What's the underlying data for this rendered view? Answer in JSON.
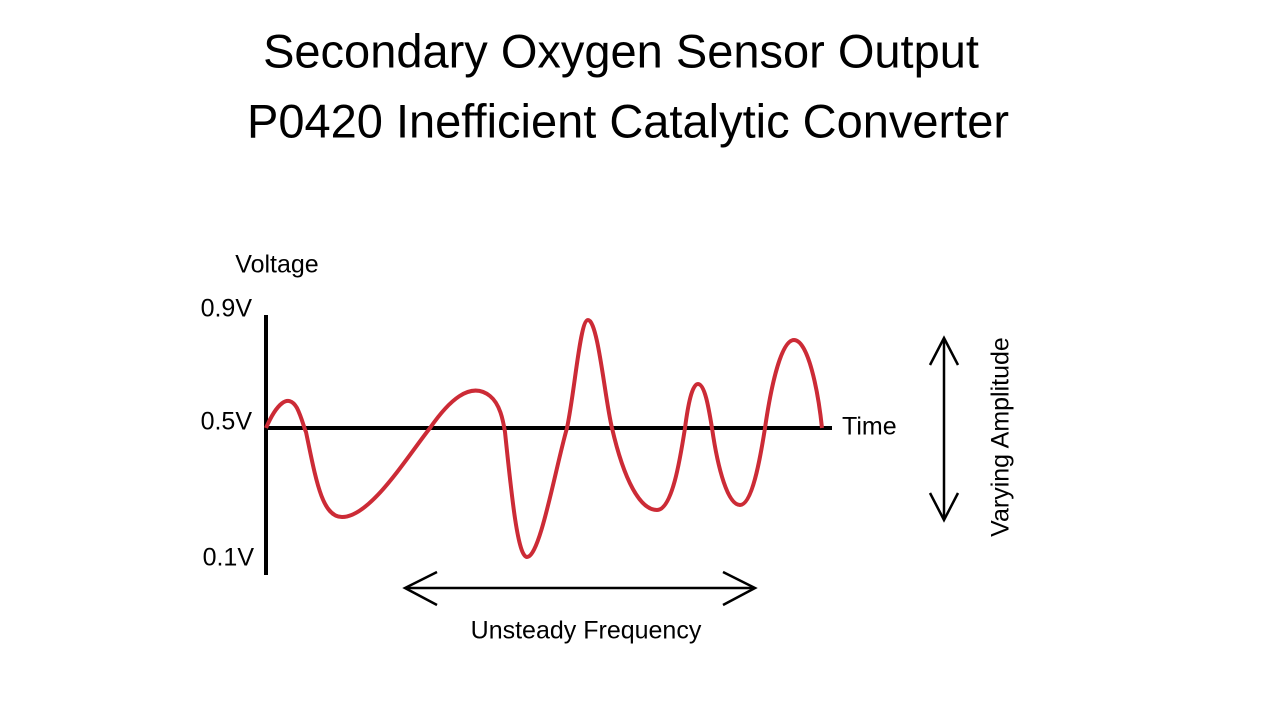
{
  "header": {
    "title_lines": [
      "Secondary Oxygen Sensor Output",
      "P0420 Inefficient Catalytic Converter"
    ]
  },
  "graph": {
    "y_axis_label": "Voltage",
    "x_axis_label": "Time",
    "y_labels": [
      "0.9V",
      "0.5V",
      "0.1V"
    ]
  },
  "annotations": {
    "frequency": "Unsteady Frequency",
    "amplitude": "Varying Amplitude"
  }
}
